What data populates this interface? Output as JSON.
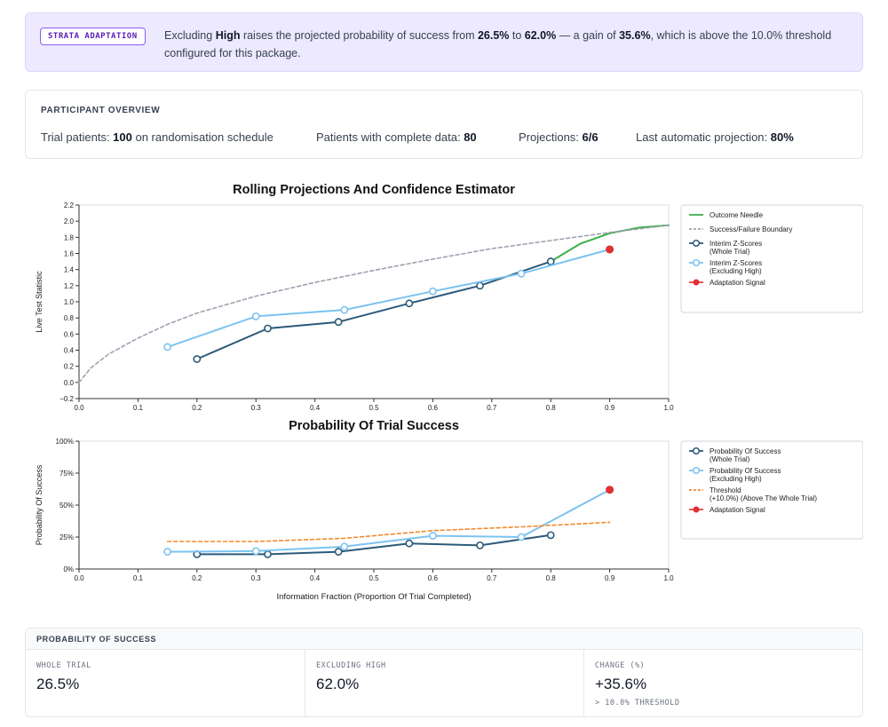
{
  "banner": {
    "tag": "STRATA ADAPTATION",
    "t1": "Excluding ",
    "b1": "High",
    "t2": " raises the projected probability of success from ",
    "b2": "26.5%",
    "t3": " to ",
    "b3": "62.0%",
    "t4": " — a gain of ",
    "b4": "35.6%",
    "t5": ", which is above the 10.0% threshold configured for this package."
  },
  "overview": {
    "title": "PARTICIPANT OVERVIEW",
    "trial_label": "Trial patients: ",
    "trial_value": "100",
    "trial_suffix": " on randomisation schedule",
    "complete_label": "Patients with complete data: ",
    "complete_value": "80",
    "projections_label": "Projections: ",
    "projections_value": "6/6",
    "last_label": "Last automatic projection: ",
    "last_value": "80%"
  },
  "colors": {
    "whole": "#2c5a7a",
    "excluding": "#7cc3f0",
    "needle": "#3fae4a",
    "boundary": "#9ca3af",
    "threshold": "#f28a2e",
    "signal": "#e03131"
  },
  "chart_data": [
    {
      "type": "line",
      "title": "Rolling Projections And Confidence Estimator",
      "xlabel": "",
      "ylabel": "Live Test Statistic",
      "xlim": [
        0.0,
        1.0
      ],
      "ylim": [
        -0.2,
        2.2
      ],
      "xticks": [
        "0.0",
        "0.1",
        "0.2",
        "0.3",
        "0.4",
        "0.5",
        "0.6",
        "0.7",
        "0.8",
        "0.9",
        "1.0"
      ],
      "yticks": [
        "−0.2",
        "0.0",
        "0.2",
        "0.4",
        "0.6",
        "0.8",
        "1.0",
        "1.2",
        "1.4",
        "1.6",
        "1.8",
        "2.0",
        "2.2"
      ],
      "legend_position": "right",
      "series": [
        {
          "name": "Outcome Needle",
          "style": "solid",
          "x": [
            0.8,
            0.85,
            0.9,
            0.95,
            1.0
          ],
          "y": [
            1.5,
            1.72,
            1.85,
            1.92,
            1.95
          ]
        },
        {
          "name": "Success/Failure Boundary",
          "style": "dashed",
          "x": [
            0.0,
            0.02,
            0.05,
            0.1,
            0.15,
            0.2,
            0.3,
            0.4,
            0.5,
            0.6,
            0.7,
            0.8,
            0.9,
            1.0
          ],
          "y": [
            0.0,
            0.18,
            0.35,
            0.55,
            0.72,
            0.86,
            1.07,
            1.24,
            1.39,
            1.53,
            1.66,
            1.76,
            1.86,
            1.95
          ]
        },
        {
          "name": "Interim Z-Scores (Whole Trial)",
          "style": "markers",
          "x": [
            0.2,
            0.32,
            0.44,
            0.56,
            0.68,
            0.8
          ],
          "y": [
            0.29,
            0.67,
            0.75,
            0.98,
            1.2,
            1.5
          ]
        },
        {
          "name": "Interim Z-Scores (Excluding High)",
          "style": "markers",
          "x": [
            0.15,
            0.3,
            0.45,
            0.6,
            0.75,
            0.9
          ],
          "y": [
            0.44,
            0.82,
            0.9,
            1.13,
            1.35,
            1.65
          ]
        },
        {
          "name": "Adaptation Signal",
          "style": "point",
          "x": [
            0.9
          ],
          "y": [
            1.65
          ]
        }
      ]
    },
    {
      "type": "line",
      "title": "Probability Of Trial Success",
      "xlabel": "Information Fraction (Proportion Of Trial Completed)",
      "ylabel": "Probability Of Success",
      "xlim": [
        0.0,
        1.0
      ],
      "ylim": [
        0,
        100
      ],
      "xticks": [
        "0.0",
        "0.1",
        "0.2",
        "0.3",
        "0.4",
        "0.5",
        "0.6",
        "0.7",
        "0.8",
        "0.9",
        "1.0"
      ],
      "yticks": [
        "0%",
        "25%",
        "50%",
        "75%",
        "100%"
      ],
      "legend_position": "right",
      "series": [
        {
          "name": "Probability Of Success (Whole Trial)",
          "style": "markers",
          "x": [
            0.2,
            0.32,
            0.44,
            0.56,
            0.68,
            0.8
          ],
          "y": [
            11.5,
            11.5,
            13.5,
            20,
            18.5,
            26.5
          ]
        },
        {
          "name": "Probability Of Success (Excluding High)",
          "style": "markers",
          "x": [
            0.15,
            0.3,
            0.45,
            0.6,
            0.75,
            0.9
          ],
          "y": [
            13.5,
            14,
            17.5,
            26,
            25,
            62
          ]
        },
        {
          "name": "Threshold (+10.0%) (Above The Whole Trial)",
          "style": "dashed",
          "x": [
            0.15,
            0.3,
            0.45,
            0.6,
            0.75,
            0.9
          ],
          "y": [
            21.5,
            21.5,
            24,
            30,
            33,
            36.5
          ]
        },
        {
          "name": "Adaptation Signal",
          "style": "point",
          "x": [
            0.9
          ],
          "y": [
            62
          ]
        }
      ]
    }
  ],
  "pos": {
    "title": "PROBABILITY OF SUCCESS",
    "whole_label": "WHOLE TRIAL",
    "whole_value": "26.5%",
    "excl_label": "EXCLUDING HIGH",
    "excl_value": "62.0%",
    "change_label": "CHANGE (%)",
    "change_value": "+35.6%",
    "change_sub": "> 10.0% THRESHOLD"
  }
}
